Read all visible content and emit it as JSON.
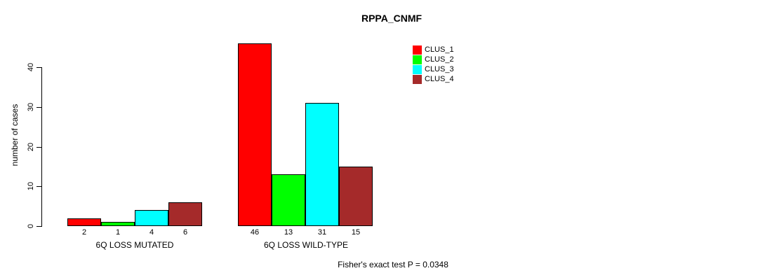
{
  "chart_data": {
    "type": "bar",
    "title": "RPPA_CNMF",
    "ylabel": "number of cases",
    "yticks": [
      0,
      10,
      20,
      30,
      40
    ],
    "ylim": [
      0,
      46
    ],
    "grid": false,
    "legend_position": "top-right",
    "categories": [
      "6Q LOSS MUTATED",
      "6Q LOSS WILD-TYPE"
    ],
    "series": [
      {
        "name": "CLUS_1",
        "color": "#ff0000",
        "values": [
          2,
          46
        ]
      },
      {
        "name": "CLUS_2",
        "color": "#00ff00",
        "values": [
          1,
          13
        ]
      },
      {
        "name": "CLUS_3",
        "color": "#00ffff",
        "values": [
          4,
          31
        ]
      },
      {
        "name": "CLUS_4",
        "color": "#a52a2a",
        "values": [
          6,
          15
        ]
      }
    ],
    "bar_value_labels_shown": true,
    "annotation": "Fisher's exact test P = 0.0348",
    "text_color": "#000000",
    "axis_color": "#000000"
  }
}
